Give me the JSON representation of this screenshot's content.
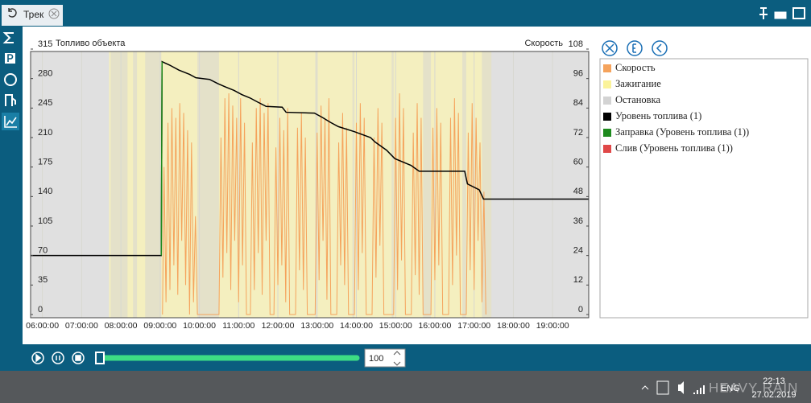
{
  "tab": {
    "title": "Трек"
  },
  "chart_data": {
    "type": "line",
    "y_label": "Топливо объекта",
    "y2_label": "Скорость",
    "xlim": [
      5.7,
      19.92
    ],
    "xticks": [
      {
        "value": 6,
        "label": "06:00:00"
      },
      {
        "value": 7,
        "label": "07:00:00"
      },
      {
        "value": 8,
        "label": "08:00:00"
      },
      {
        "value": 9,
        "label": "09:00:00"
      },
      {
        "value": 10,
        "label": "10:00:00"
      },
      {
        "value": 11,
        "label": "11:00:00"
      },
      {
        "value": 12,
        "label": "12:00:00"
      },
      {
        "value": 13,
        "label": "13:00:00"
      },
      {
        "value": 14,
        "label": "14:00:00"
      },
      {
        "value": 15,
        "label": "15:00:00"
      },
      {
        "value": 16,
        "label": "16:00:00"
      },
      {
        "value": 17,
        "label": "17:00:00"
      },
      {
        "value": 18,
        "label": "18:00:00"
      },
      {
        "value": 19,
        "label": "19:00:00"
      }
    ],
    "ylim": [
      0,
      315
    ],
    "yticks": [
      0,
      35,
      70,
      105,
      140,
      175,
      210,
      245,
      280,
      315
    ],
    "y2lim": [
      0,
      108
    ],
    "y2ticks": [
      0,
      12,
      24,
      36,
      48,
      60,
      72,
      84,
      96,
      108
    ],
    "grid": true,
    "series": [
      {
        "name": "Скорость",
        "color": "#f5a35c",
        "axis": "y2",
        "x": [
          9.06,
          9.1,
          9.15,
          9.2,
          9.25,
          9.3,
          9.35,
          9.4,
          9.45,
          9.5,
          9.55,
          9.6,
          9.65,
          9.7,
          9.75,
          9.8,
          9.85,
          9.9,
          9.95,
          10.5,
          10.55,
          10.6,
          10.65,
          10.7,
          10.75,
          10.8,
          10.85,
          10.9,
          10.95,
          11.0,
          11.05,
          11.1,
          11.15,
          11.2,
          11.3,
          11.35,
          11.4,
          11.45,
          11.5,
          11.55,
          11.6,
          11.65,
          11.7,
          11.75,
          11.8,
          11.9,
          11.95,
          12.0,
          12.05,
          12.1,
          12.15,
          12.2,
          12.25,
          12.3,
          12.45,
          12.5,
          12.55,
          12.6,
          12.65,
          12.7,
          12.75,
          12.95,
          13.0,
          13.05,
          13.1,
          13.15,
          13.2,
          13.25,
          13.3,
          13.35,
          13.5,
          13.55,
          13.6,
          13.65,
          13.7,
          13.75,
          13.8,
          13.95,
          14.0,
          14.05,
          14.1,
          14.15,
          14.2,
          14.25,
          14.4,
          14.45,
          14.5,
          14.55,
          14.6,
          14.65,
          14.7,
          14.95,
          15.0,
          15.05,
          15.1,
          15.15,
          15.2,
          15.25,
          15.4,
          15.45,
          15.5,
          15.55,
          15.6,
          15.65,
          15.7,
          15.9,
          15.95,
          16.0,
          16.05,
          16.1,
          16.15,
          16.2,
          16.35,
          16.4,
          16.45,
          16.5,
          16.55,
          16.6,
          16.65,
          16.8,
          16.85,
          16.9,
          16.95,
          17.0,
          17.05,
          17.1,
          17.15,
          17.2,
          17.25,
          17.3
        ],
        "values": [
          0,
          60,
          5,
          78,
          10,
          84,
          20,
          80,
          8,
          86,
          30,
          82,
          12,
          75,
          0,
          70,
          5,
          40,
          0,
          0,
          72,
          15,
          88,
          25,
          90,
          10,
          85,
          30,
          80,
          5,
          88,
          20,
          78,
          0,
          0,
          70,
          10,
          84,
          25,
          88,
          8,
          82,
          30,
          86,
          0,
          0,
          68,
          12,
          80,
          20,
          75,
          5,
          84,
          0,
          0,
          76,
          18,
          82,
          10,
          72,
          0,
          0,
          74,
          14,
          85,
          30,
          80,
          6,
          88,
          0,
          0,
          70,
          20,
          82,
          12,
          76,
          0,
          0,
          78,
          10,
          86,
          25,
          80,
          0,
          0,
          72,
          15,
          84,
          28,
          78,
          0,
          0,
          80,
          10,
          90,
          22,
          84,
          0,
          0,
          74,
          16,
          86,
          8,
          80,
          0,
          0,
          76,
          14,
          84,
          20,
          78,
          0,
          0,
          80,
          12,
          88,
          24,
          82,
          0,
          0,
          74,
          18,
          86,
          10,
          80,
          30,
          70,
          5,
          50,
          0
        ]
      },
      {
        "name": "Зажигание",
        "color": "#fbf39a",
        "intervals": [
          [
            7.7,
            17.44
          ]
        ]
      },
      {
        "name": "Остановка",
        "color": "#d3d3d3",
        "intervals": [
          [
            5.7,
            7.7
          ],
          [
            7.74,
            8.17
          ],
          [
            8.31,
            8.41
          ],
          [
            8.62,
            9.03
          ],
          [
            9.95,
            10.5
          ],
          [
            12.95,
            13.0
          ],
          [
            13.9,
            13.95
          ],
          [
            14.9,
            14.95
          ],
          [
            15.7,
            15.9
          ],
          [
            16.7,
            16.8
          ],
          [
            17.2,
            17.44
          ],
          [
            17.44,
            19.92
          ]
        ]
      },
      {
        "name": "Уровень топлива (1)",
        "color": "#000000",
        "x": [
          5.7,
          9.03,
          9.05,
          9.24,
          9.48,
          9.75,
          9.91,
          10.26,
          10.47,
          10.67,
          10.88,
          11.08,
          11.29,
          11.49,
          11.7,
          12.11,
          12.21,
          12.93,
          13.13,
          13.34,
          13.54,
          13.95,
          14.36,
          14.47,
          14.77,
          14.98,
          15.39,
          15.6,
          16.76,
          16.83,
          17.13,
          17.24,
          19.92
        ],
        "values": [
          70,
          70,
          300,
          296,
          290,
          285,
          281,
          279,
          274,
          270,
          266,
          261,
          257,
          252,
          247,
          246,
          240,
          239,
          234,
          228,
          223,
          217,
          210,
          205,
          195,
          185,
          177,
          170,
          170,
          155,
          148,
          137,
          137
        ]
      },
      {
        "name": "Заправка (Уровень топлива (1))",
        "color": "#1e8a1e",
        "x": [
          9.03,
          9.05
        ],
        "values": [
          70,
          300
        ]
      },
      {
        "name": "Слив (Уровень топлива (1))",
        "color": "#e04848",
        "x": [],
        "values": []
      }
    ]
  },
  "player": {
    "speed": 100
  },
  "taskbar": {
    "lang": "ENG",
    "time": "22:13",
    "date": "27.02.2019",
    "watermark": "HEAVY RAIN"
  }
}
